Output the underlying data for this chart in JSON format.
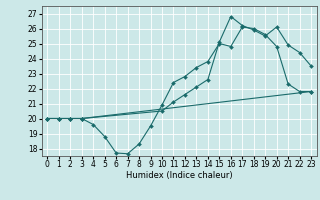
{
  "xlabel": "Humidex (Indice chaleur)",
  "bg_color": "#cce8e8",
  "line_color": "#1a6b6b",
  "grid_color": "#ffffff",
  "xlim": [
    -0.5,
    23.5
  ],
  "ylim": [
    17.5,
    27.5
  ],
  "yticks": [
    18,
    19,
    20,
    21,
    22,
    23,
    24,
    25,
    26,
    27
  ],
  "xticks": [
    0,
    1,
    2,
    3,
    4,
    5,
    6,
    7,
    8,
    9,
    10,
    11,
    12,
    13,
    14,
    15,
    16,
    17,
    18,
    19,
    20,
    21,
    22,
    23
  ],
  "line1_x": [
    0,
    1,
    2,
    3,
    4,
    5,
    6,
    7,
    8,
    9,
    10,
    11,
    12,
    13,
    14,
    15,
    16,
    17,
    18,
    19,
    20,
    21,
    22,
    23
  ],
  "line1_y": [
    20.0,
    20.0,
    20.0,
    20.0,
    19.6,
    18.8,
    17.7,
    17.65,
    18.3,
    19.5,
    20.9,
    22.4,
    22.8,
    23.4,
    23.8,
    25.0,
    24.8,
    26.1,
    26.0,
    25.6,
    24.8,
    22.3,
    21.8,
    21.8
  ],
  "line2_x": [
    0,
    1,
    2,
    3,
    10,
    11,
    12,
    13,
    14,
    15,
    16,
    17,
    18,
    19,
    20,
    21,
    22,
    23
  ],
  "line2_y": [
    20.0,
    20.0,
    20.0,
    20.0,
    20.5,
    21.1,
    21.6,
    22.1,
    22.6,
    25.1,
    26.8,
    26.2,
    25.9,
    25.5,
    26.1,
    24.9,
    24.4,
    23.5
  ],
  "line3_x": [
    0,
    1,
    2,
    3,
    23
  ],
  "line3_y": [
    20.0,
    20.0,
    20.0,
    20.0,
    21.8
  ],
  "xlabel_fontsize": 6,
  "tick_fontsize": 5.5
}
